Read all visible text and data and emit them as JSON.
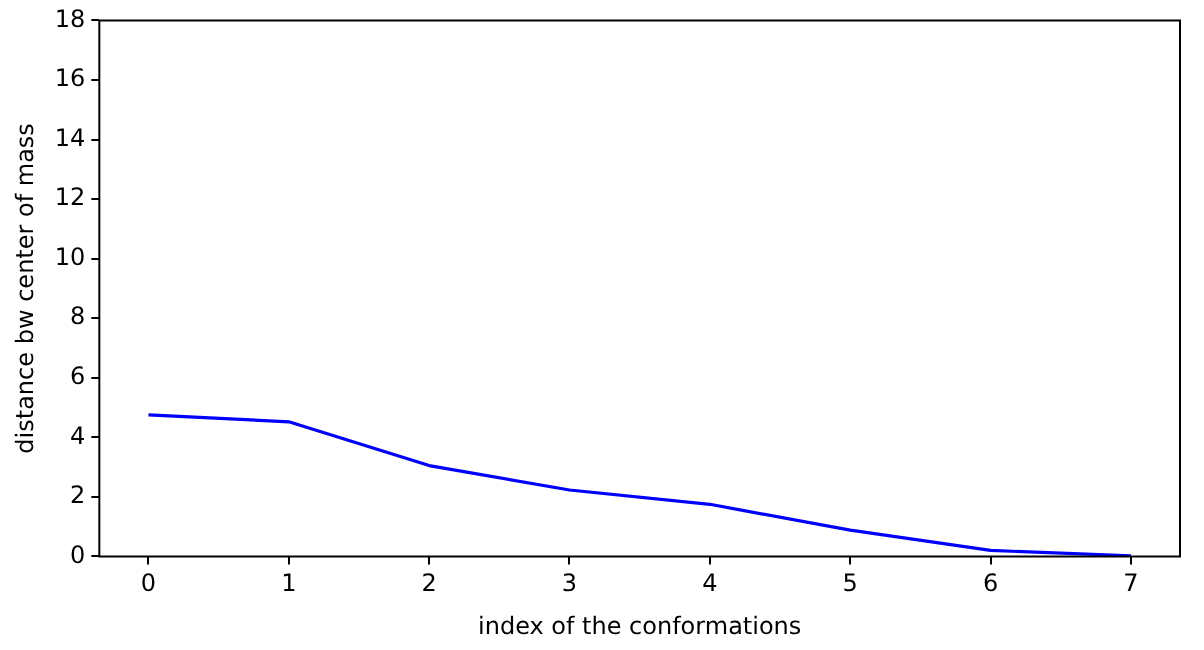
{
  "chart_data": {
    "type": "line",
    "xlabel": "index of the conformations",
    "ylabel": "distance bw center of mass",
    "x": [
      0,
      1,
      2,
      3,
      4,
      5,
      6,
      7
    ],
    "series": [
      {
        "color": "#0000ff",
        "values": [
          4.75,
          4.52,
          3.05,
          2.23,
          1.75,
          0.88,
          0.2,
          0.02
        ]
      }
    ],
    "xlim": [
      -0.35,
      7.35
    ],
    "xticks": [
      0,
      1,
      2,
      3,
      4,
      5,
      6,
      7
    ],
    "ylim": [
      0,
      18
    ],
    "yticks": [
      0,
      2,
      4,
      6,
      8,
      10,
      12,
      14,
      16,
      18
    ],
    "grid": false,
    "legend": false,
    "marker": "none",
    "line_style": "solid"
  }
}
